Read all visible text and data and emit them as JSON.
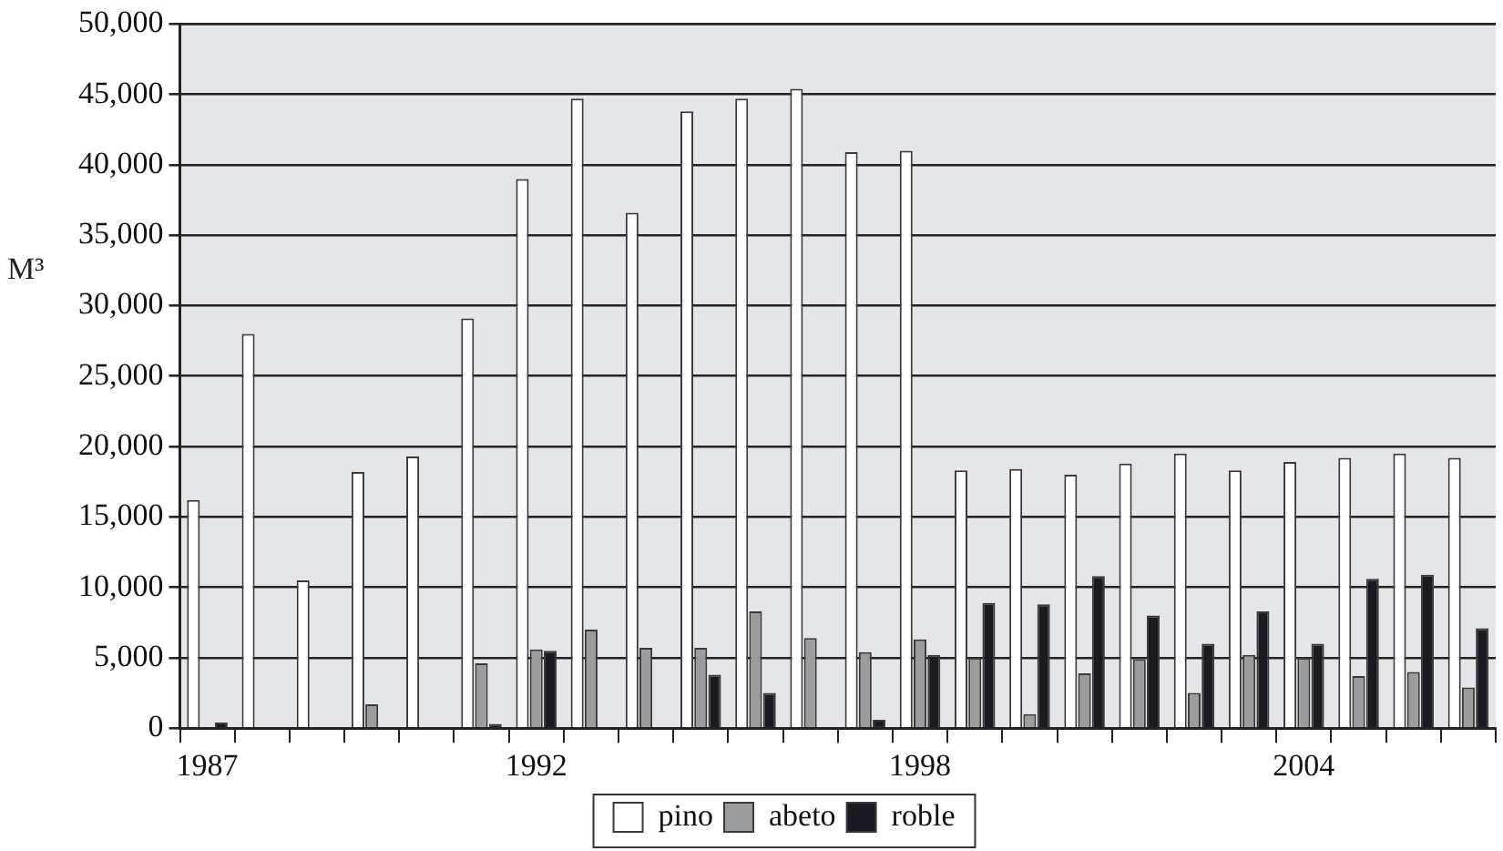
{
  "chart_data": {
    "type": "bar",
    "ylabel": "M³",
    "categories": [
      "1987",
      null,
      null,
      null,
      null,
      null,
      "1992",
      null,
      null,
      null,
      null,
      null,
      null,
      "1998",
      null,
      null,
      null,
      null,
      null,
      null,
      "2004",
      null,
      null,
      null
    ],
    "series": [
      {
        "name": "pino",
        "color": "#ffffff",
        "values": [
          16200,
          28000,
          10500,
          18200,
          19300,
          29100,
          39000,
          44700,
          36600,
          43800,
          44700,
          45400,
          40900,
          41000,
          18300,
          18400,
          18000,
          18800,
          19500,
          18300,
          18900,
          19200,
          19500,
          19200
        ]
      },
      {
        "name": "abeto",
        "color": "#9a9c9e",
        "values": [
          0,
          0,
          0,
          1700,
          0,
          4600,
          5600,
          7000,
          5700,
          5700,
          8300,
          6400,
          5400,
          6300,
          5000,
          1000,
          3900,
          4900,
          2500,
          5200,
          5000,
          3700,
          4000,
          2900
        ]
      },
      {
        "name": "roble",
        "color": "#1b1a22",
        "values": [
          400,
          0,
          0,
          0,
          0,
          300,
          5500,
          0,
          0,
          3800,
          2500,
          0,
          600,
          5200,
          8900,
          8800,
          10800,
          8000,
          6000,
          8300,
          6000,
          10600,
          10900,
          7100
        ]
      }
    ],
    "ylim": [
      0,
      50000
    ],
    "yticks": [
      0,
      {
        "value": 5000,
        "label": "5,000"
      },
      {
        "value": 10000,
        "label": "10,000"
      },
      {
        "value": 15000,
        "label": "15,000"
      },
      {
        "value": 20000,
        "label": "20,000"
      },
      {
        "value": 25000,
        "label": "25,000"
      },
      {
        "value": 30000,
        "label": "30,000"
      },
      {
        "value": 35000,
        "label": "35,000"
      },
      {
        "value": 40000,
        "label": "40,000"
      },
      {
        "value": 45000,
        "label": "45,000"
      },
      {
        "value": 50000,
        "label": "50,000"
      }
    ],
    "grid": "y",
    "legend": "bottom"
  }
}
